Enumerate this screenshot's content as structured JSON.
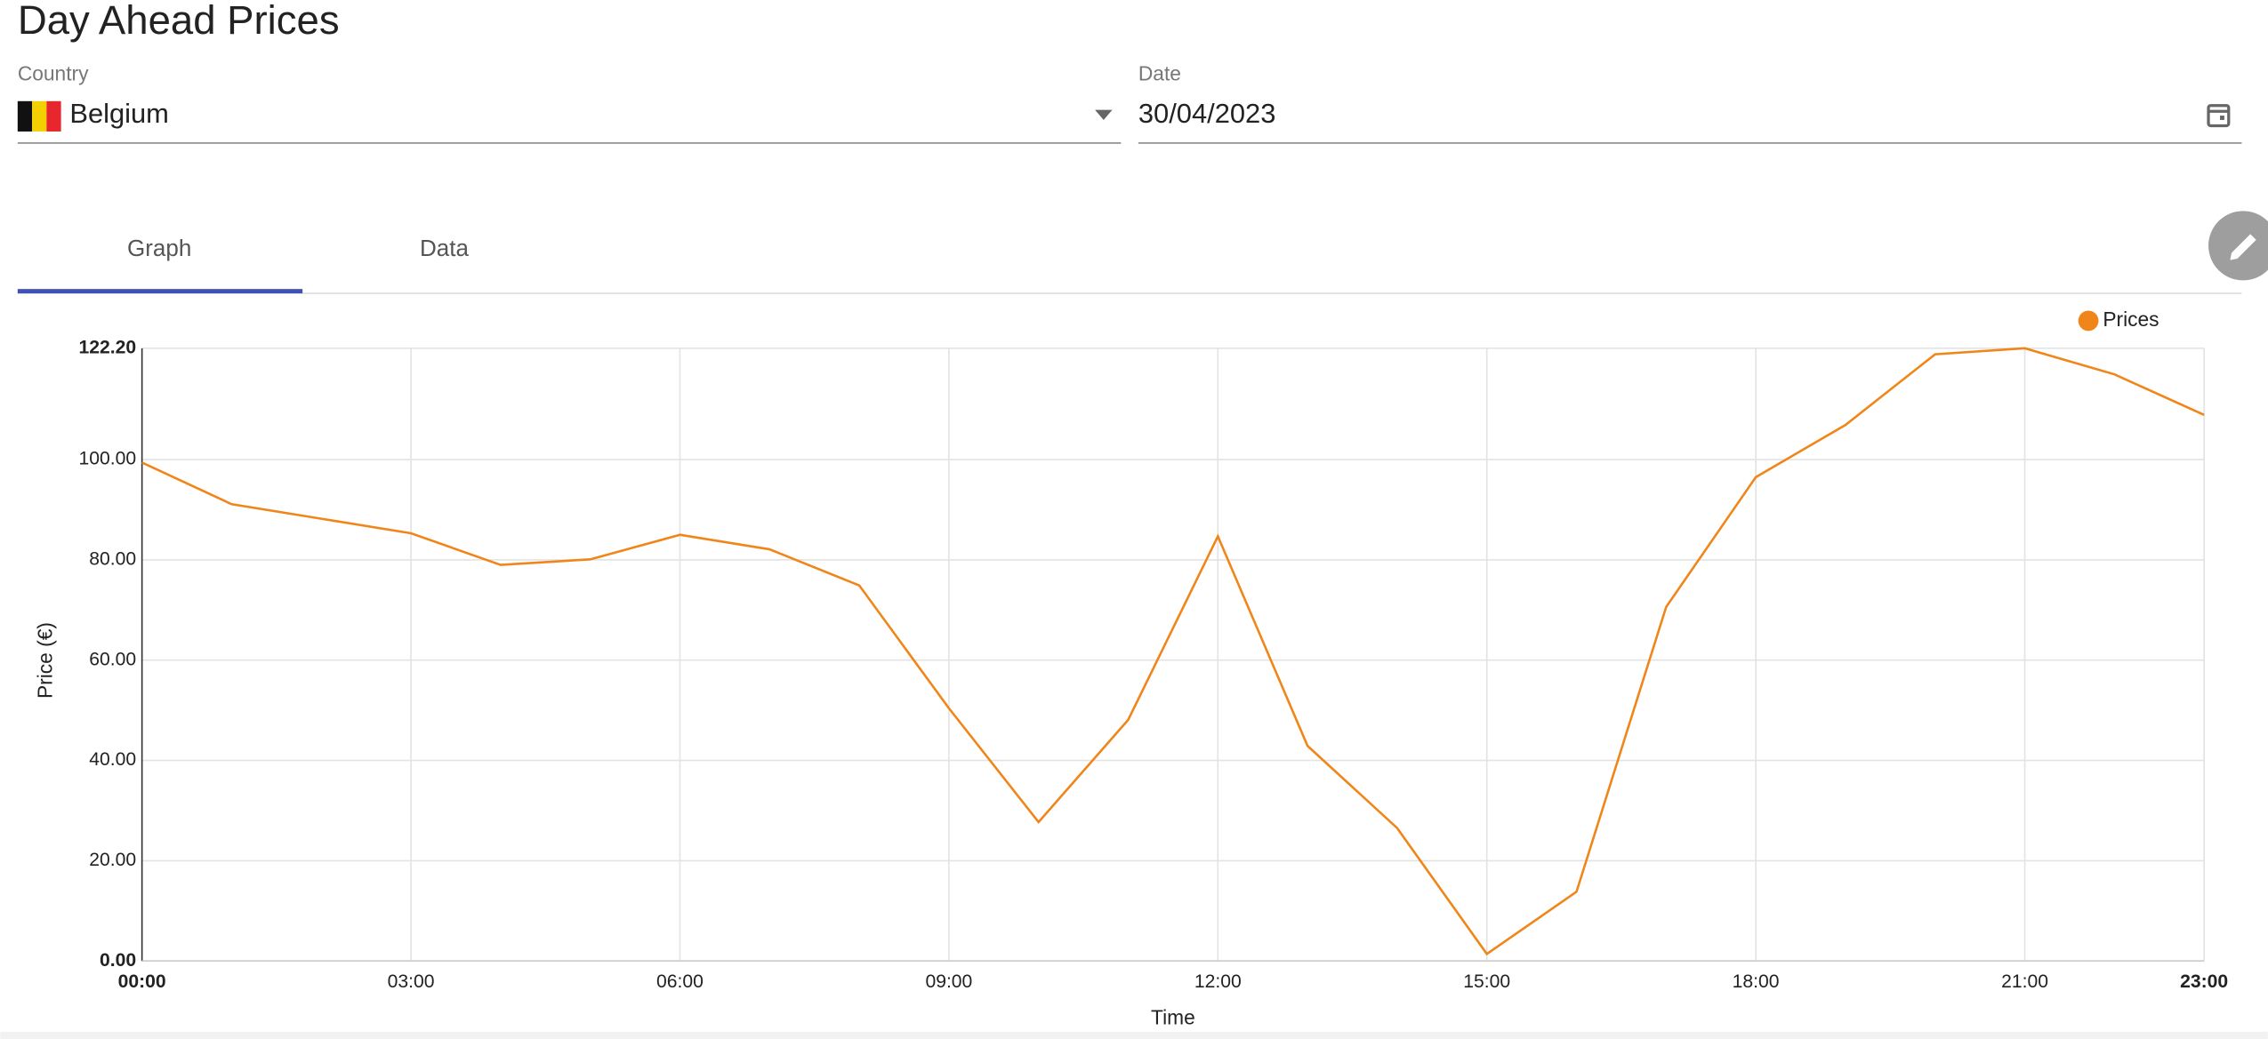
{
  "header": {
    "title": "Day Ahead Prices"
  },
  "filters": {
    "country_label": "Country",
    "country": "Belgium",
    "date_label": "Date",
    "date": "30/04/2023"
  },
  "tabs": [
    "Graph",
    "Data"
  ],
  "chart_data": {
    "type": "line",
    "x_label": "Time",
    "y_label": "Price (€)",
    "categories": [
      "00:00",
      null,
      null,
      "03:00",
      null,
      null,
      "06:00",
      null,
      null,
      "09:00",
      null,
      null,
      "12:00",
      null,
      null,
      "15:00",
      null,
      null,
      "18:00",
      null,
      null,
      "21:00",
      null,
      "23:00"
    ],
    "series": [
      {
        "name": "Prices",
        "color": "#f0861a",
        "values": [
          99.4,
          91.1,
          88.2,
          85.3,
          79.0,
          80.1,
          85.0,
          82.1,
          74.9,
          50.4,
          27.7,
          48.1,
          84.7,
          42.9,
          26.5,
          1.4,
          13.8,
          70.6,
          96.5,
          106.9,
          121.0,
          122.2,
          117.0,
          108.9
        ]
      }
    ],
    "ylim": [
      0,
      122.2
    ],
    "yticks": [
      {
        "value": 0,
        "label": "0.00"
      },
      {
        "value": 20,
        "label": "20.00"
      },
      {
        "value": 40,
        "label": "40.00"
      },
      {
        "value": 60,
        "label": "60.00"
      },
      {
        "value": 80,
        "label": "80.00"
      },
      {
        "value": 100,
        "label": "100.00"
      },
      {
        "value": 122.2,
        "label": "122.20"
      }
    ],
    "grid": true
  }
}
